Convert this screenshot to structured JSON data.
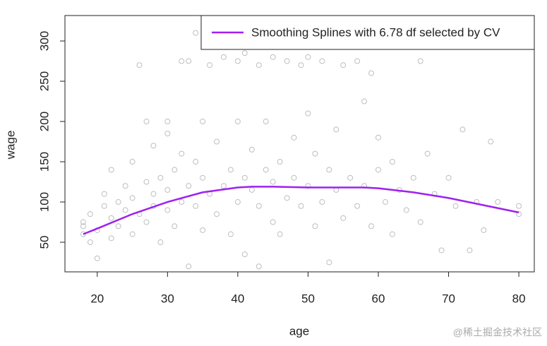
{
  "chart_data": {
    "type": "scatter",
    "xlabel": "age",
    "ylabel": "wage",
    "xlim": [
      15.4,
      82.2
    ],
    "ylim": [
      13.2,
      331.6
    ],
    "xticks": [
      20,
      30,
      40,
      50,
      60,
      70,
      80
    ],
    "yticks": [
      50,
      100,
      150,
      200,
      250,
      300
    ],
    "legend": "top-right",
    "series": [
      {
        "type": "scatter",
        "color": "#bebebe",
        "x": [
          18,
          18,
          18,
          19,
          19,
          20,
          20,
          21,
          21,
          22,
          22,
          22,
          23,
          23,
          24,
          24,
          25,
          25,
          25,
          26,
          26,
          27,
          27,
          27,
          28,
          28,
          28,
          29,
          29,
          30,
          30,
          30,
          30,
          31,
          31,
          32,
          32,
          32,
          33,
          33,
          33,
          34,
          34,
          34,
          35,
          35,
          35,
          36,
          36,
          37,
          37,
          38,
          38,
          39,
          39,
          40,
          40,
          40,
          41,
          41,
          41,
          42,
          42,
          43,
          43,
          43,
          44,
          44,
          45,
          45,
          45,
          46,
          46,
          47,
          47,
          48,
          48,
          49,
          49,
          50,
          50,
          50,
          51,
          51,
          52,
          52,
          53,
          53,
          54,
          54,
          55,
          55,
          56,
          57,
          57,
          58,
          58,
          59,
          59,
          60,
          60,
          61,
          62,
          62,
          63,
          64,
          65,
          66,
          66,
          67,
          68,
          69,
          70,
          71,
          72,
          73,
          74,
          75,
          76,
          77,
          80,
          80
        ],
        "values": [
          70,
          75,
          60,
          50,
          85,
          30,
          65,
          95,
          110,
          55,
          80,
          140,
          70,
          100,
          90,
          120,
          60,
          105,
          150,
          270,
          85,
          75,
          125,
          200,
          95,
          110,
          170,
          50,
          130,
          90,
          115,
          185,
          200,
          70,
          140,
          275,
          100,
          160,
          20,
          120,
          275,
          95,
          150,
          310,
          65,
          130,
          200,
          270,
          110,
          85,
          175,
          120,
          280,
          60,
          140,
          100,
          200,
          275,
          35,
          130,
          285,
          115,
          165,
          95,
          20,
          270,
          140,
          200,
          75,
          125,
          280,
          150,
          60,
          105,
          275,
          130,
          180,
          95,
          270,
          120,
          210,
          280,
          70,
          160,
          100,
          275,
          140,
          25,
          115,
          190,
          80,
          270,
          130,
          95,
          275,
          225,
          120,
          260,
          70,
          140,
          180,
          100,
          150,
          60,
          115,
          90,
          130,
          275,
          75,
          160,
          110,
          40,
          130,
          95,
          190,
          40,
          100,
          65,
          175,
          100,
          95,
          85
        ]
      },
      {
        "type": "line",
        "name": "Smoothing Splines with 6.78 df selected by CV",
        "color": "#a020f0",
        "x": [
          18,
          20,
          25,
          30,
          35,
          40,
          42,
          45,
          50,
          55,
          58,
          60,
          65,
          70,
          75,
          80
        ],
        "values": [
          60,
          67,
          85,
          100,
          112,
          118,
          119,
          119,
          118,
          118,
          118,
          117,
          112,
          105,
          96,
          87
        ]
      }
    ]
  },
  "watermark": "@稀土掘金技术社区"
}
